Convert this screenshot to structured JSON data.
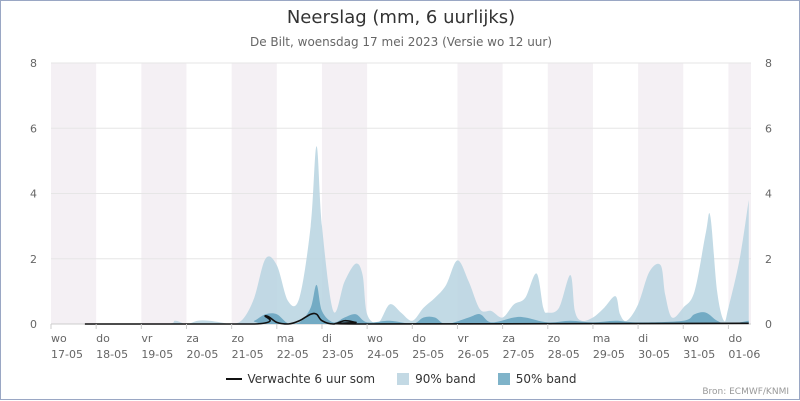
{
  "title": "Neerslag (mm, 6 uurlijks)",
  "subtitle": "De Bilt, woensdag 17 mei 2023 (Versie wo 12 uur)",
  "credit": "Bron: ECMWF/KNMI",
  "legend": [
    {
      "label": "Verwachte 6 uur som",
      "color": "#111111",
      "kind": "line"
    },
    {
      "label": "90% band",
      "color": "#c3d9e4",
      "kind": "box"
    },
    {
      "label": "50% band",
      "color": "#7fb3c9",
      "kind": "box"
    }
  ],
  "colors": {
    "band90": "#b7d4e0",
    "band50": "#6aa5c0",
    "line": "#111111",
    "weekend_shade": "#f4f0f4",
    "grid": "#e6e6e6"
  },
  "chart_data": {
    "type": "area",
    "ylim": [
      0,
      8
    ],
    "xlim": [
      0,
      15.5
    ],
    "x_unit": "days since 17-05 00:00",
    "yticks": [
      0,
      2,
      4,
      6,
      8
    ],
    "xticks": [
      {
        "x": 0,
        "day": "wo",
        "date": "17-05"
      },
      {
        "x": 1,
        "day": "do",
        "date": "18-05"
      },
      {
        "x": 2,
        "day": "vr",
        "date": "19-05"
      },
      {
        "x": 3,
        "day": "za",
        "date": "20-05"
      },
      {
        "x": 4,
        "day": "zo",
        "date": "21-05"
      },
      {
        "x": 5,
        "day": "ma",
        "date": "22-05"
      },
      {
        "x": 6,
        "day": "di",
        "date": "23-05"
      },
      {
        "x": 7,
        "day": "wo",
        "date": "24-05"
      },
      {
        "x": 8,
        "day": "do",
        "date": "25-05"
      },
      {
        "x": 9,
        "day": "vr",
        "date": "26-05"
      },
      {
        "x": 10,
        "day": "za",
        "date": "27-05"
      },
      {
        "x": 11,
        "day": "zo",
        "date": "28-05"
      },
      {
        "x": 12,
        "day": "ma",
        "date": "29-05"
      },
      {
        "x": 13,
        "day": "di",
        "date": "30-05"
      },
      {
        "x": 14,
        "day": "wo",
        "date": "31-05"
      },
      {
        "x": 15,
        "day": "do",
        "date": "01-06"
      }
    ],
    "shaded_days": [
      0,
      2,
      4,
      6,
      9,
      11,
      13,
      15
    ],
    "series": [
      {
        "name": "90% band",
        "points": [
          [
            0.75,
            0
          ],
          [
            2.5,
            0
          ],
          [
            2.75,
            0.1
          ],
          [
            3.0,
            0
          ],
          [
            3.25,
            0.1
          ],
          [
            3.5,
            0.1
          ],
          [
            3.75,
            0.05
          ],
          [
            4.0,
            0
          ],
          [
            4.25,
            0.15
          ],
          [
            4.5,
            0.8
          ],
          [
            4.75,
            2.0
          ],
          [
            5.0,
            1.8
          ],
          [
            5.25,
            0.7
          ],
          [
            5.5,
            0.8
          ],
          [
            5.75,
            3.0
          ],
          [
            5.88,
            5.45
          ],
          [
            6.0,
            3.0
          ],
          [
            6.25,
            0.4
          ],
          [
            6.5,
            1.3
          ],
          [
            6.75,
            1.85
          ],
          [
            6.9,
            1.5
          ],
          [
            7.0,
            0.3
          ],
          [
            7.25,
            0.05
          ],
          [
            7.5,
            0.6
          ],
          [
            7.75,
            0.35
          ],
          [
            8.0,
            0.1
          ],
          [
            8.25,
            0.5
          ],
          [
            8.5,
            0.8
          ],
          [
            8.75,
            1.2
          ],
          [
            9.0,
            1.95
          ],
          [
            9.25,
            1.3
          ],
          [
            9.5,
            0.45
          ],
          [
            9.75,
            0.4
          ],
          [
            10.0,
            0.2
          ],
          [
            10.25,
            0.6
          ],
          [
            10.5,
            0.8
          ],
          [
            10.75,
            1.55
          ],
          [
            10.9,
            0.5
          ],
          [
            11.0,
            0.35
          ],
          [
            11.25,
            0.5
          ],
          [
            11.5,
            1.5
          ],
          [
            11.6,
            0.4
          ],
          [
            11.75,
            0.1
          ],
          [
            12.0,
            0.2
          ],
          [
            12.25,
            0.5
          ],
          [
            12.5,
            0.85
          ],
          [
            12.6,
            0.3
          ],
          [
            12.75,
            0.1
          ],
          [
            13.0,
            0.6
          ],
          [
            13.25,
            1.6
          ],
          [
            13.5,
            1.8
          ],
          [
            13.6,
            0.9
          ],
          [
            13.75,
            0.2
          ],
          [
            14.0,
            0.5
          ],
          [
            14.25,
            1.0
          ],
          [
            14.5,
            2.8
          ],
          [
            14.6,
            3.3
          ],
          [
            14.75,
            1.0
          ],
          [
            14.9,
            0.1
          ],
          [
            15.0,
            0.5
          ],
          [
            15.25,
            2.0
          ],
          [
            15.45,
            3.8
          ]
        ]
      },
      {
        "name": "50% band",
        "points": [
          [
            0.75,
            0
          ],
          [
            4.25,
            0
          ],
          [
            4.5,
            0.1
          ],
          [
            4.75,
            0.3
          ],
          [
            5.0,
            0.3
          ],
          [
            5.25,
            0.02
          ],
          [
            5.5,
            0.05
          ],
          [
            5.75,
            0.5
          ],
          [
            5.88,
            1.2
          ],
          [
            6.0,
            0.4
          ],
          [
            6.25,
            0.05
          ],
          [
            6.5,
            0.2
          ],
          [
            6.75,
            0.3
          ],
          [
            7.0,
            0.05
          ],
          [
            7.5,
            0.1
          ],
          [
            8.0,
            0
          ],
          [
            8.25,
            0.2
          ],
          [
            8.5,
            0.2
          ],
          [
            8.75,
            0
          ],
          [
            9.25,
            0.2
          ],
          [
            9.5,
            0.3
          ],
          [
            9.75,
            0.05
          ],
          [
            10.25,
            0.2
          ],
          [
            10.5,
            0.2
          ],
          [
            11.0,
            0.05
          ],
          [
            11.5,
            0.1
          ],
          [
            12.0,
            0.05
          ],
          [
            12.5,
            0.1
          ],
          [
            13.0,
            0.05
          ],
          [
            14.0,
            0.1
          ],
          [
            14.25,
            0.3
          ],
          [
            14.5,
            0.35
          ],
          [
            14.75,
            0.1
          ],
          [
            15.0,
            0
          ],
          [
            15.45,
            0.1
          ]
        ]
      },
      {
        "name": "Verwachte 6 uur som",
        "points": [
          [
            0.75,
            0
          ],
          [
            4.5,
            0
          ],
          [
            4.75,
            0.25
          ],
          [
            5.0,
            0.05
          ],
          [
            5.25,
            0
          ],
          [
            5.5,
            0.1
          ],
          [
            5.75,
            0.3
          ],
          [
            5.88,
            0.3
          ],
          [
            6.0,
            0.1
          ],
          [
            6.25,
            0
          ],
          [
            6.5,
            0.1
          ],
          [
            6.75,
            0.05
          ],
          [
            7.0,
            0
          ],
          [
            15.45,
            0.02
          ]
        ]
      }
    ]
  }
}
